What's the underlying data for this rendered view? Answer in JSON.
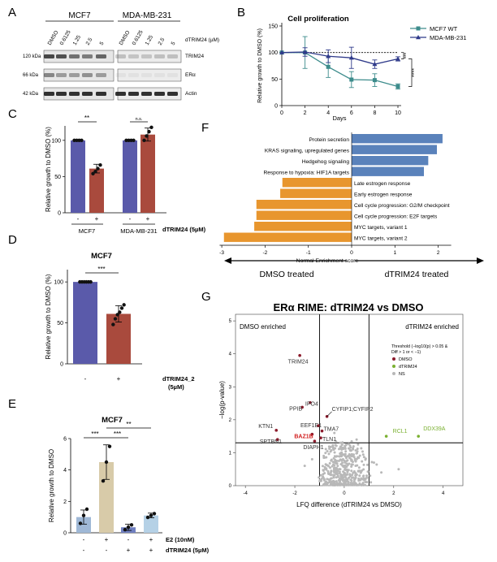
{
  "panels": {
    "A": "A",
    "B": "B",
    "C": "C",
    "D": "D",
    "E": "E",
    "F": "F",
    "G": "G"
  },
  "blot": {
    "cell_lines": [
      "MCF7",
      "MDA-MB-231"
    ],
    "lane_labels": [
      "DMSO",
      "0.6125",
      "1.25",
      "2.5",
      "5",
      "DMSO",
      "0.6125",
      "1.25",
      "2.5",
      "5"
    ],
    "unit": "dTRIM24 (µM)",
    "markers": [
      "120 kDa",
      "66 kDa",
      "42 kDa"
    ],
    "bands": [
      "TRIM24",
      "ERα",
      "Actin"
    ]
  },
  "chart_data": [
    {
      "id": "B",
      "type": "line",
      "title": "Cell proliferation",
      "xlabel": "Days",
      "ylabel": "Relative growth to DMSO (%)",
      "xlim": [
        0,
        10
      ],
      "ylim": [
        0,
        150
      ],
      "xticks": [
        0,
        2,
        4,
        6,
        8,
        10
      ],
      "yticks": [
        0,
        50,
        100,
        150
      ],
      "series": [
        {
          "name": "MCF7 WT",
          "x": [
            0,
            2,
            4,
            6,
            8,
            10
          ],
          "values": [
            100,
            100,
            73,
            49,
            48,
            36
          ],
          "err": [
            0,
            30,
            20,
            15,
            12,
            5
          ],
          "color": "#3d8c8c"
        },
        {
          "name": "MDA-MB-231",
          "x": [
            0,
            2,
            4,
            6,
            8,
            10
          ],
          "values": [
            100,
            101,
            93,
            90,
            78,
            88
          ],
          "err": [
            0,
            8,
            12,
            20,
            8,
            4
          ],
          "color": "#2f3a8a"
        }
      ],
      "reference": 100,
      "significance": [
        "***",
        "****"
      ]
    },
    {
      "id": "C",
      "type": "bar",
      "ylabel": "Relative growth to DMSO (%)",
      "ylim": [
        0,
        120
      ],
      "yticks": [
        0,
        50,
        100
      ],
      "categories": [
        "-",
        "+",
        "-",
        "+"
      ],
      "groups": [
        "MCF7",
        "MDA-MB-231"
      ],
      "treatment": "dTRIM24 (5µM)",
      "values": [
        100,
        61,
        100,
        108
      ],
      "err": [
        0,
        6,
        0,
        9
      ],
      "points": [
        [
          100,
          100,
          100,
          100
        ],
        [
          54,
          57,
          61,
          66
        ],
        [
          100,
          100,
          100,
          100
        ],
        [
          100,
          106,
          112,
          118
        ]
      ],
      "colors": [
        "#5a5aaa",
        "#a94a3d",
        "#5a5aaa",
        "#a94a3d"
      ],
      "significance": [
        "**",
        "n.s."
      ]
    },
    {
      "id": "D",
      "type": "bar",
      "title": "MCF7",
      "ylabel": "Relative growth to DMSO (%)",
      "ylim": [
        0,
        115
      ],
      "yticks": [
        0,
        50,
        100
      ],
      "categories": [
        "-",
        "+"
      ],
      "treatment": "dTRIM24_2",
      "treatment_dose": "(5µM)",
      "values": [
        100,
        61
      ],
      "err": [
        0,
        10
      ],
      "points": [
        [
          100,
          100,
          100,
          100,
          100,
          100
        ],
        [
          48,
          55,
          60,
          63,
          68,
          72
        ]
      ],
      "colors": [
        "#5a5aaa",
        "#a94a3d"
      ],
      "significance": [
        "***"
      ]
    },
    {
      "id": "E",
      "type": "bar",
      "title": "MCF7",
      "ylabel": "Relative growth to DMSO",
      "ylim": [
        0,
        6
      ],
      "yticks": [
        0,
        2,
        4,
        6
      ],
      "e2_row": [
        "-",
        "+",
        "-",
        "+"
      ],
      "dtrim_row": [
        "-",
        "-",
        "+",
        "+"
      ],
      "row_labels": [
        "E2 (10nM)",
        "dTRIM24 (5µM)"
      ],
      "values": [
        1.0,
        4.5,
        0.35,
        1.1
      ],
      "err": [
        0.45,
        1.1,
        0.2,
        0.15
      ],
      "points": [
        [
          0.6,
          1.1,
          1.5
        ],
        [
          3.3,
          4.5,
          5.5
        ],
        [
          0.2,
          0.35,
          0.5
        ],
        [
          0.98,
          1.1,
          1.22
        ]
      ],
      "colors": [
        "#9fb8d6",
        "#d8cba9",
        "#6f7fc0",
        "#b5d1e6"
      ],
      "significance": [
        "***",
        "***",
        "**"
      ]
    },
    {
      "id": "F",
      "type": "bar",
      "orientation": "horizontal",
      "xlabel": "Normal Enrichment score",
      "xlim": [
        -3,
        2.5
      ],
      "xticks": [
        -3,
        -2,
        -1,
        0,
        1,
        2
      ],
      "categories": [
        "Protein secretion",
        "KRAS signaling, upregulated genes",
        "Hedgehog signaling",
        "Response to hypoxia: HIF1A targets",
        "Late estrogen response",
        "Early estrogen response",
        "Cell cycle progression: G2/M checkpoint",
        "Cell cycle progression: E2F targets",
        "MYC targets, variant 1",
        "MYC targets, variant 2"
      ],
      "values": [
        2.1,
        1.97,
        1.77,
        1.67,
        -1.6,
        -1.65,
        -2.2,
        -2.2,
        -2.25,
        -2.95
      ],
      "colors": {
        "positive": "#5a82bb",
        "negative": "#e8962e"
      },
      "arrow_left": "DMSO treated",
      "arrow_right": "dTRIM24 treated"
    },
    {
      "id": "G",
      "type": "scatter",
      "title": "ERα RIME: dTRIM24 vs DMSO",
      "xlabel": "LFQ difference (dTRIM24 vs DMSO)",
      "ylabel": "−log(p-value)",
      "xlim": [
        -4.4,
        4.8
      ],
      "ylim": [
        0,
        5.2
      ],
      "xticks": [
        -4,
        -2,
        0,
        2,
        4
      ],
      "yticks": [
        0,
        1,
        2,
        3,
        4,
        5
      ],
      "left_note": "DMSO enriched",
      "right_note": "dTRIM24 enriched",
      "threshold_lines": {
        "x": [
          -1,
          1
        ],
        "y": 1.3
      },
      "legend_title": "Threshold (−log10(p) > 0.05 &",
      "legend_title2": "Diff > 1 or < −1)",
      "legend": [
        {
          "label": "DMSO",
          "color": "#8b1a2b"
        },
        {
          "label": "dTRIM24",
          "color": "#7ab030"
        },
        {
          "label": "NS",
          "color": "#b8b8b8"
        }
      ],
      "labeled_points": [
        {
          "label": "TRIM24",
          "x": -1.8,
          "y": 3.95,
          "color": "#333"
        },
        {
          "label": "IPO4",
          "x": -1.38,
          "y": 2.52,
          "color": "#333"
        },
        {
          "label": "PPIB",
          "x": -1.7,
          "y": 2.38,
          "color": "#333"
        },
        {
          "label": "CYFIP1;CYFIP2",
          "x": -0.7,
          "y": 2.1,
          "color": "#333"
        },
        {
          "label": "EEF1E1",
          "x": -1.05,
          "y": 1.82,
          "color": "#333"
        },
        {
          "label": "KTN1",
          "x": -2.75,
          "y": 1.68,
          "color": "#333"
        },
        {
          "label": "TMA7",
          "x": -0.9,
          "y": 1.66,
          "color": "#333"
        },
        {
          "label": "BAZ1B",
          "x": -1.3,
          "y": 1.56,
          "color": "#d11a1a"
        },
        {
          "label": "TLN1",
          "x": -0.95,
          "y": 1.45,
          "color": "#333"
        },
        {
          "label": "SPTBN1",
          "x": -2.7,
          "y": 1.4,
          "color": "#333"
        },
        {
          "label": "DIAPH1",
          "x": -1.2,
          "y": 1.35,
          "color": "#333"
        },
        {
          "label": "RCL1",
          "x": 1.7,
          "y": 1.5,
          "color": "#7ab030"
        },
        {
          "label": "DDX39A",
          "x": 3.0,
          "y": 1.5,
          "color": "#7ab030"
        }
      ]
    }
  ]
}
